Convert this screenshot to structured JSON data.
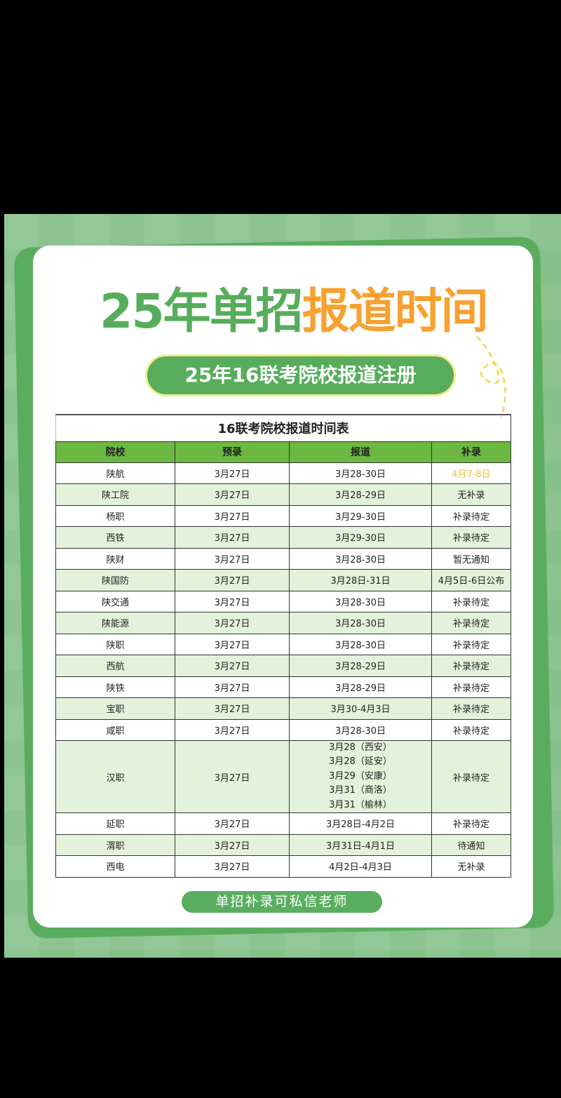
{
  "header": {
    "title_green": "25年单招",
    "title_orange": "报道时间",
    "subtitle": "25年16联考院校报道注册"
  },
  "table": {
    "caption": "16联考院校报道时间表",
    "columns": [
      "院校",
      "预录",
      "报道",
      "补录"
    ],
    "rows": [
      {
        "school": "陕航",
        "pre": "3月27日",
        "report": [
          "3月28-30日"
        ],
        "supp": "4月7-8日",
        "supp_highlight": true
      },
      {
        "school": "陕工院",
        "pre": "3月27日",
        "report": [
          "3月28-29日"
        ],
        "supp": "无补录"
      },
      {
        "school": "杨职",
        "pre": "3月27日",
        "report": [
          "3月29-30日"
        ],
        "supp": "补录待定"
      },
      {
        "school": "西铁",
        "pre": "3月27日",
        "report": [
          "3月29-30日"
        ],
        "supp": "补录待定"
      },
      {
        "school": "陕财",
        "pre": "3月27日",
        "report": [
          "3月28-30日"
        ],
        "supp": "暂无通知"
      },
      {
        "school": "陕国防",
        "pre": "3月27日",
        "report": [
          "3月28日-31日"
        ],
        "supp": "4月5日-6日公布"
      },
      {
        "school": "陕交通",
        "pre": "3月27日",
        "report": [
          "3月28-30日"
        ],
        "supp": "补录待定"
      },
      {
        "school": "陕能源",
        "pre": "3月27日",
        "report": [
          "3月28-30日"
        ],
        "supp": "补录待定"
      },
      {
        "school": "陕职",
        "pre": "3月27日",
        "report": [
          "3月28-30日"
        ],
        "supp": "补录待定"
      },
      {
        "school": "西航",
        "pre": "3月27日",
        "report": [
          "3月28-29日"
        ],
        "supp": "补录待定"
      },
      {
        "school": "陕铁",
        "pre": "3月27日",
        "report": [
          "3月28-29日"
        ],
        "supp": "补录待定"
      },
      {
        "school": "宝职",
        "pre": "3月27日",
        "report": [
          "3月30-4月3日"
        ],
        "supp": "补录待定"
      },
      {
        "school": "咸职",
        "pre": "3月27日",
        "report": [
          "3月28-30日"
        ],
        "supp": "补录待定"
      },
      {
        "school": "汉职",
        "pre": "3月27日",
        "report": [
          "3月28（西安）",
          "3月28（延安）",
          "3月29（安康）",
          "3月31（商洛）",
          "3月31（榆林）"
        ],
        "supp": "补录待定"
      },
      {
        "school": "延职",
        "pre": "3月27日",
        "report": [
          "3月28日-4月2日"
        ],
        "supp": "补录待定"
      },
      {
        "school": "渭职",
        "pre": "3月27日",
        "report": [
          "3月31日-4月1日"
        ],
        "supp": "待通知"
      },
      {
        "school": "西电",
        "pre": "3月27日",
        "report": [
          "4月2日-4月3日"
        ],
        "supp": "无补录"
      }
    ]
  },
  "footer": {
    "button_label": "单招补录可私信老师"
  },
  "colors": {
    "green": "#57ad5c",
    "orange": "#f6a132",
    "header_green": "#6cb843",
    "row_alt": "#e3f2da",
    "highlight": "#f1bf3c"
  }
}
